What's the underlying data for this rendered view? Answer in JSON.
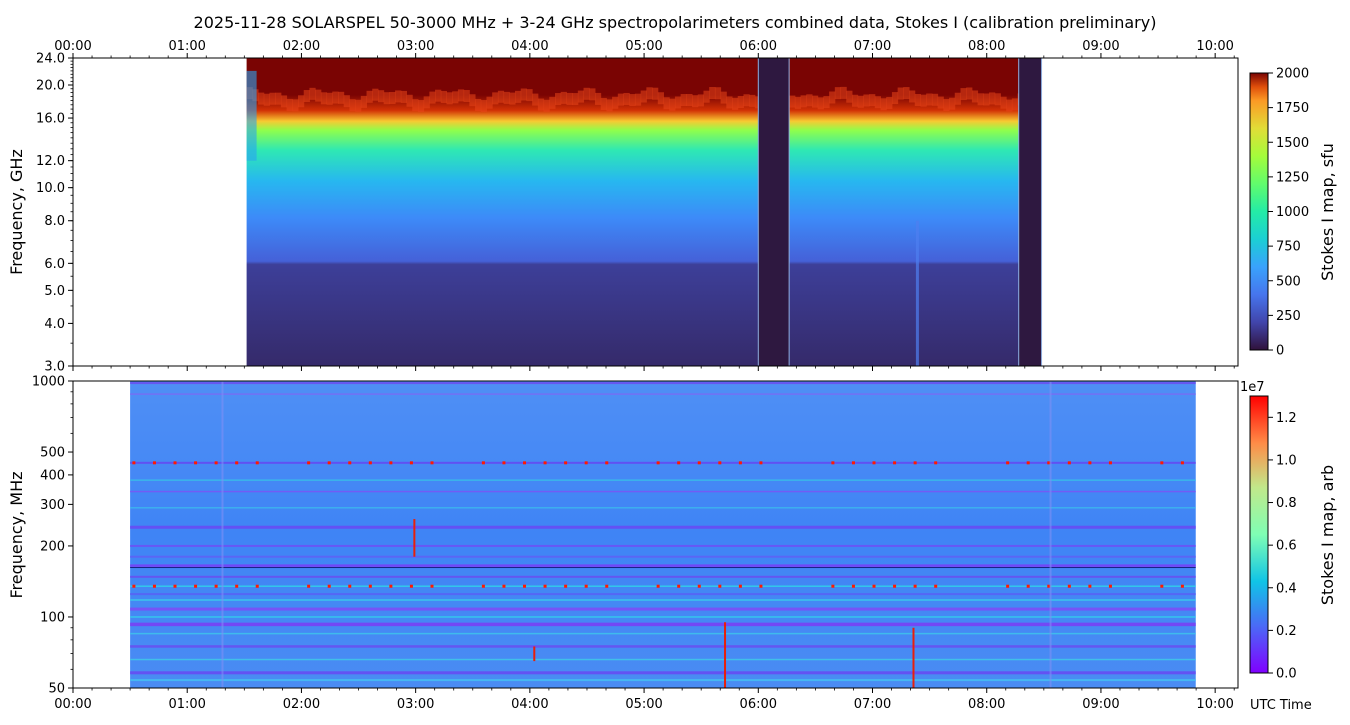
{
  "title": "2025-11-28  SOLARSPEL  50-3000 MHz  +  3-24 GHz  spectropolarimeters combined data,  Stokes I  (calibration preliminary)",
  "chart_data": [
    {
      "type": "heatmap",
      "name": "upper-panel",
      "ylabel": "Frequency, GHz",
      "x_tick_labels": [
        "00:00",
        "01:00",
        "02:00",
        "03:00",
        "04:00",
        "05:00",
        "06:00",
        "07:00",
        "08:00",
        "09:00",
        "10:00"
      ],
      "x_range_hours": [
        0,
        10.2
      ],
      "yticks": [
        {
          "value": 3.0,
          "label": "3.0"
        },
        {
          "value": 4.0,
          "label": "4.0"
        },
        {
          "value": 5.0,
          "label": "5.0"
        },
        {
          "value": 6.0,
          "label": "6.0"
        },
        {
          "value": 8.0,
          "label": "8.0"
        },
        {
          "value": 10.0,
          "label": "10.0"
        },
        {
          "value": 12.0,
          "label": "12.0"
        },
        {
          "value": 16.0,
          "label": "16.0"
        },
        {
          "value": 20.0,
          "label": "20.0"
        },
        {
          "value": 24.0,
          "label": "24.0"
        }
      ],
      "y_range": [
        3.0,
        24.0
      ],
      "y_scale": "log",
      "data_segments_hours": [
        [
          1.52,
          6.0
        ],
        [
          6.27,
          8.28
        ]
      ],
      "gap_segments_hours": [
        [
          6.0,
          6.27
        ],
        [
          8.28,
          8.48
        ]
      ],
      "colorbar": {
        "label": "Stokes I map,  sfu",
        "ticks": [
          "0",
          "250",
          "500",
          "750",
          "1000",
          "1250",
          "1500",
          "1750",
          "2000"
        ],
        "range": [
          0,
          2000
        ],
        "colormap": "turbo"
      }
    },
    {
      "type": "heatmap",
      "name": "lower-panel",
      "ylabel": "Frequency, MHz",
      "xlabel": "UTC Time",
      "x_tick_labels": [
        "00:00",
        "01:00",
        "02:00",
        "03:00",
        "04:00",
        "05:00",
        "06:00",
        "07:00",
        "08:00",
        "09:00",
        "10:00"
      ],
      "x_range_hours": [
        0,
        10.2
      ],
      "yticks": [
        {
          "value": 50,
          "label": "50"
        },
        {
          "value": 100,
          "label": "100"
        },
        {
          "value": 200,
          "label": "200"
        },
        {
          "value": 300,
          "label": "300"
        },
        {
          "value": 400,
          "label": "400"
        },
        {
          "value": 500,
          "label": "500"
        },
        {
          "value": 1000,
          "label": "1000"
        }
      ],
      "y_range": [
        50,
        1000
      ],
      "y_scale": "log",
      "data_segments_hours": [
        [
          0.5,
          9.83
        ]
      ],
      "colorbar": {
        "label": "Stokes I map,  arb",
        "offset_label": "1e7",
        "ticks": [
          "0.0",
          "0.2",
          "0.4",
          "0.6",
          "0.8",
          "1.0",
          "1.2"
        ],
        "range": [
          0,
          1.3
        ],
        "colormap": "rainbow"
      }
    }
  ]
}
